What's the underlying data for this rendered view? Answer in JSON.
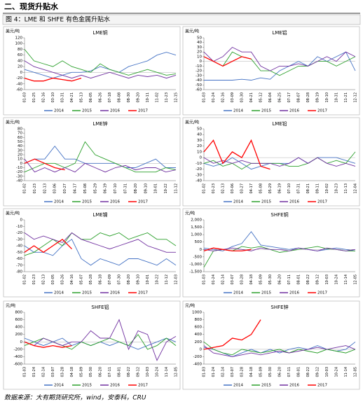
{
  "header": {
    "section": "二、现货升贴水",
    "figure_title": "图 4：LME 和 SHFE 有色金属升贴水"
  },
  "source": "数据来源：大有期货研究所，wind，安泰科，CRU",
  "chart_data": [
    {
      "type": "line",
      "title": "LME铜",
      "y_unit": "美元/吨",
      "legend": "bottom",
      "categories": [
        "01-03",
        "01-25",
        "02-16",
        "03-10",
        "03-31",
        "04-21",
        "05-13",
        "06-05",
        "06-26",
        "07-18",
        "08-08",
        "08-30",
        "09-20",
        "10-11",
        "11-02",
        "11-23",
        "12-15"
      ],
      "ylim": [
        -60,
        120
      ],
      "yticks": [
        -60,
        -40,
        -20,
        0,
        20,
        40,
        60,
        80,
        100,
        120
      ],
      "series": [
        {
          "name": "2014",
          "color": "#4472c4",
          "values": [
            10,
            0,
            -10,
            -20,
            -10,
            0,
            0,
            5,
            20,
            10,
            0,
            20,
            30,
            40,
            60,
            70,
            60
          ]
        },
        {
          "name": "2015",
          "color": "#2ca02c",
          "values": [
            80,
            40,
            30,
            20,
            40,
            20,
            10,
            0,
            30,
            10,
            0,
            -10,
            0,
            10,
            0,
            -10,
            -5
          ]
        },
        {
          "name": "2016",
          "color": "#7030a0",
          "values": [
            40,
            20,
            10,
            0,
            -10,
            -20,
            -10,
            -20,
            -10,
            0,
            -10,
            -20,
            -10,
            -15,
            -10,
            -20,
            -10
          ]
        },
        {
          "name": "2017",
          "color": "#ff0000",
          "values": [
            -20,
            -30,
            -30,
            -20,
            -25,
            -30,
            -20,
            null,
            null,
            null,
            null,
            null,
            null,
            null,
            null,
            null,
            null
          ]
        }
      ]
    },
    {
      "type": "line",
      "title": "LME铝",
      "y_unit": "美元/吨",
      "legend": "bottom",
      "categories": [
        "01-03",
        "01-24",
        "02-16",
        "03-09",
        "03-30",
        "04-21",
        "05-12",
        "06-04",
        "06-25",
        "07-17",
        "08-07",
        "08-28",
        "09-19",
        "10-10",
        "10-31",
        "11-21",
        "12-12"
      ],
      "ylim": [
        -60,
        50
      ],
      "yticks": [
        -60,
        -50,
        -40,
        -30,
        -20,
        -10,
        0,
        10,
        20,
        30,
        40,
        50
      ],
      "series": [
        {
          "name": "2014",
          "color": "#4472c4",
          "values": [
            -40,
            -40,
            -40,
            -40,
            -38,
            -40,
            -35,
            -38,
            -20,
            -10,
            0,
            -10,
            10,
            0,
            10,
            20,
            -20
          ]
        },
        {
          "name": "2015",
          "color": "#2ca02c",
          "values": [
            10,
            0,
            -10,
            20,
            10,
            5,
            -20,
            -20,
            -30,
            -20,
            -10,
            -10,
            0,
            0,
            -10,
            0,
            10
          ]
        },
        {
          "name": "2016",
          "color": "#7030a0",
          "values": [
            20,
            0,
            10,
            30,
            20,
            20,
            -10,
            -20,
            -10,
            -10,
            -5,
            -10,
            0,
            10,
            0,
            20,
            10
          ]
        },
        {
          "name": "2017",
          "color": "#ff0000",
          "values": [
            10,
            0,
            -10,
            0,
            10,
            5,
            null,
            null,
            null,
            null,
            null,
            null,
            null,
            null,
            null,
            null,
            null
          ]
        }
      ]
    },
    {
      "type": "line",
      "title": "LME锌",
      "y_unit": "美元/吨",
      "legend": "bottom",
      "categories": [
        "01-02",
        "01-23",
        "02-13",
        "03-06",
        "03-27",
        "04-17",
        "05-08",
        "05-29",
        "06-19",
        "07-10",
        "07-31",
        "08-20",
        "09-10",
        "10-01",
        "10-22",
        "11-12"
      ],
      "ylim": [
        -40,
        80
      ],
      "yticks": [
        -40,
        -30,
        -20,
        -10,
        0,
        10,
        20,
        30,
        40,
        50,
        60,
        70,
        80
      ],
      "series": [
        {
          "name": "2014",
          "color": "#4472c4",
          "values": [
            0,
            10,
            10,
            40,
            10,
            10,
            0,
            0,
            0,
            0,
            -10,
            -10,
            0,
            10,
            -10,
            -10
          ]
        },
        {
          "name": "2015",
          "color": "#2ca02c",
          "values": [
            -20,
            -10,
            0,
            0,
            -10,
            0,
            50,
            20,
            10,
            0,
            -10,
            -20,
            -20,
            -20,
            -10,
            -15
          ]
        },
        {
          "name": "2016",
          "color": "#7030a0",
          "values": [
            10,
            -20,
            -10,
            -20,
            -10,
            -20,
            0,
            -10,
            -20,
            -10,
            -5,
            -15,
            -10,
            -10,
            -20,
            -15
          ]
        },
        {
          "name": "2017",
          "color": "#ff0000",
          "values": [
            0,
            10,
            0,
            -10,
            -15,
            null,
            null,
            null,
            null,
            null,
            null,
            null,
            null,
            null,
            null,
            null
          ]
        }
      ]
    },
    {
      "type": "line",
      "title": "LME铅",
      "y_unit": "美元/吨",
      "legend": "bottom",
      "categories": [
        "01-02",
        "01-23",
        "02-13",
        "03-06",
        "03-27",
        "04-17",
        "05-08",
        "05-29",
        "06-19",
        "07-10",
        "07-31",
        "08-21",
        "09-11",
        "10-02",
        "10-23",
        "11-13",
        "12-04"
      ],
      "ylim": [
        -40,
        50
      ],
      "yticks": [
        -40,
        -30,
        -20,
        -10,
        0,
        10,
        20,
        30,
        40,
        50
      ],
      "series": [
        {
          "name": "2014",
          "color": "#4472c4",
          "values": [
            -10,
            -15,
            -10,
            0,
            -10,
            -20,
            -15,
            -10,
            -10,
            -10,
            0,
            -10,
            0,
            0,
            0,
            -5,
            -10
          ]
        },
        {
          "name": "2015",
          "color": "#2ca02c",
          "values": [
            -10,
            -5,
            -15,
            -10,
            -20,
            -10,
            -10,
            -10,
            -10,
            -15,
            -15,
            -10,
            0,
            -10,
            -5,
            -10,
            10
          ]
        },
        {
          "name": "2016",
          "color": "#7030a0",
          "values": [
            0,
            -10,
            -5,
            -10,
            -5,
            -10,
            -10,
            -10,
            -15,
            -10,
            0,
            -10,
            0,
            -10,
            -15,
            -10,
            -15
          ]
        },
        {
          "name": "2017",
          "color": "#ff0000",
          "values": [
            10,
            30,
            -10,
            10,
            0,
            30,
            -15,
            -20,
            null,
            null,
            null,
            null,
            null,
            null,
            null,
            null,
            null
          ]
        }
      ]
    },
    {
      "type": "line",
      "title": "LME镍",
      "y_unit": "美元/吨",
      "legend": "bottom",
      "categories": [
        "01-02",
        "01-23",
        "02-13",
        "03-05",
        "03-26",
        "04-16",
        "05-07",
        "05-28",
        "06-18",
        "07-09",
        "07-30",
        "08-20",
        "09-10",
        "10-01",
        "10-22",
        "11-12",
        "12-03"
      ],
      "ylim": [
        -80,
        0
      ],
      "yticks": [
        -80,
        -70,
        -60,
        -50,
        -40,
        -30,
        -20,
        -10,
        0
      ],
      "series": [
        {
          "name": "2014",
          "color": "#4472c4",
          "values": [
            -40,
            -50,
            -50,
            -55,
            -40,
            -30,
            -60,
            -70,
            -60,
            -65,
            -70,
            -60,
            -60,
            -65,
            -70,
            -60,
            -70
          ]
        },
        {
          "name": "2015",
          "color": "#2ca02c",
          "values": [
            -55,
            -50,
            -40,
            -30,
            -40,
            -20,
            -30,
            -30,
            -20,
            -25,
            -20,
            -30,
            -25,
            -20,
            -30,
            -30,
            -40
          ]
        },
        {
          "name": "2016",
          "color": "#7030a0",
          "values": [
            -20,
            -30,
            -25,
            -30,
            -35,
            -20,
            -30,
            -35,
            -40,
            -45,
            -40,
            -35,
            -30,
            -40,
            -45,
            -50,
            -50
          ]
        },
        {
          "name": "2017",
          "color": "#ff0000",
          "values": [
            -50,
            -40,
            -50,
            -40,
            -30,
            -45,
            null,
            null,
            null,
            null,
            null,
            null,
            null,
            null,
            null,
            null,
            null
          ]
        }
      ]
    },
    {
      "type": "line",
      "title": "SHFE铜",
      "y_unit": "元/吨",
      "legend": "bottom",
      "categories": [
        "01-03",
        "01-24",
        "02-14",
        "03-07",
        "03-28",
        "04-18",
        "05-09",
        "05-30",
        "06-20",
        "07-11",
        "08-01",
        "08-22",
        "09-12",
        "10-03",
        "10-24",
        "11-14",
        "12-05"
      ],
      "ylim": [
        -1500,
        2000
      ],
      "yticks": [
        {
          "value": -1500,
          "label": "-1,500"
        },
        {
          "value": -1000,
          "label": "-1,000"
        },
        -500,
        0,
        500,
        {
          "value": 1000,
          "label": "1,000"
        },
        {
          "value": 1500,
          "label": "1,500"
        },
        {
          "value": 2000,
          "label": "2,000"
        }
      ],
      "series": [
        {
          "name": "2014",
          "color": "#4472c4",
          "values": [
            100,
            0,
            -100,
            200,
            400,
            1200,
            300,
            200,
            100,
            0,
            100,
            0,
            -100,
            0,
            100,
            0,
            -100
          ]
        },
        {
          "name": "2015",
          "color": "#2ca02c",
          "values": [
            -1200,
            -100,
            0,
            -100,
            200,
            100,
            200,
            0,
            -200,
            -100,
            0,
            100,
            200,
            50,
            0,
            -100,
            -100
          ]
        },
        {
          "name": "2016",
          "color": "#7030a0",
          "values": [
            0,
            -100,
            0,
            100,
            0,
            -100,
            100,
            0,
            0,
            -100,
            100,
            0,
            -100,
            100,
            0,
            -100,
            0
          ]
        },
        {
          "name": "2017",
          "color": "#ff0000",
          "values": [
            -100,
            100,
            0,
            -100,
            -100,
            0,
            null,
            null,
            null,
            null,
            null,
            null,
            null,
            null,
            null,
            null,
            null
          ]
        }
      ]
    },
    {
      "type": "line",
      "title": "SHFE铝",
      "y_unit": "元/吨",
      "legend": "bottom",
      "categories": [
        "01-03",
        "01-24",
        "02-14",
        "03-07",
        "03-28",
        "04-18",
        "05-09",
        "05-30",
        "06-20",
        "07-11",
        "08-01",
        "08-22",
        "09-12",
        "10-03",
        "10-24",
        "11-14",
        "12-05"
      ],
      "ylim": [
        -600,
        800
      ],
      "yticks": [
        -600,
        -400,
        -200,
        0,
        200,
        400,
        600,
        800
      ],
      "series": [
        {
          "name": "2014",
          "color": "#4472c4",
          "values": [
            100,
            0,
            -100,
            0,
            100,
            -100,
            0,
            -100,
            0,
            -100,
            0,
            -100,
            -200,
            -100,
            0,
            100,
            0
          ]
        },
        {
          "name": "2015",
          "color": "#2ca02c",
          "values": [
            -100,
            0,
            100,
            0,
            -100,
            -200,
            0,
            -100,
            0,
            100,
            0,
            -100,
            200,
            -200,
            -100,
            100,
            -100
          ]
        },
        {
          "name": "2016",
          "color": "#7030a0",
          "values": [
            0,
            -100,
            100,
            0,
            -100,
            0,
            0,
            300,
            100,
            100,
            600,
            -200,
            300,
            200,
            -500,
            0,
            150
          ]
        },
        {
          "name": "2017",
          "color": "#ff0000",
          "values": [
            0,
            -100,
            -150,
            -100,
            -150,
            -100,
            null,
            null,
            null,
            null,
            null,
            null,
            null,
            null,
            null,
            null,
            null
          ]
        }
      ]
    },
    {
      "type": "line",
      "title": "SHFE锌",
      "y_unit": "元/吨",
      "legend": "bottom",
      "categories": [
        "01-03",
        "01-24",
        "02-14",
        "03-07",
        "03-28",
        "04-18",
        "05-09",
        "05-30",
        "06-20",
        "07-11",
        "08-01",
        "08-22",
        "09-12",
        "10-03",
        "10-24",
        "11-14",
        "12-05"
      ],
      "ylim": [
        -400,
        1000
      ],
      "yticks": [
        -400,
        -200,
        0,
        200,
        400,
        600,
        800,
        1000
      ],
      "series": [
        {
          "name": "2014",
          "color": "#4472c4",
          "values": [
            50,
            0,
            -100,
            -200,
            -100,
            0,
            -100,
            0,
            -100,
            0,
            50,
            0,
            100,
            0,
            -50,
            0,
            200
          ]
        },
        {
          "name": "2015",
          "color": "#2ca02c",
          "values": [
            200,
            0,
            -100,
            -150,
            0,
            -50,
            -100,
            -50,
            0,
            -100,
            0,
            -50,
            -100,
            0,
            -50,
            -100,
            0
          ]
        },
        {
          "name": "2016",
          "color": "#7030a0",
          "values": [
            100,
            -100,
            -150,
            -200,
            -150,
            -100,
            -150,
            -100,
            -50,
            -100,
            -50,
            0,
            50,
            0,
            50,
            100,
            0
          ]
        },
        {
          "name": "2017",
          "color": "#ff0000",
          "values": [
            0,
            50,
            100,
            300,
            250,
            400,
            800,
            null,
            null,
            null,
            null,
            null,
            null,
            null,
            null,
            null,
            null
          ]
        }
      ]
    }
  ]
}
